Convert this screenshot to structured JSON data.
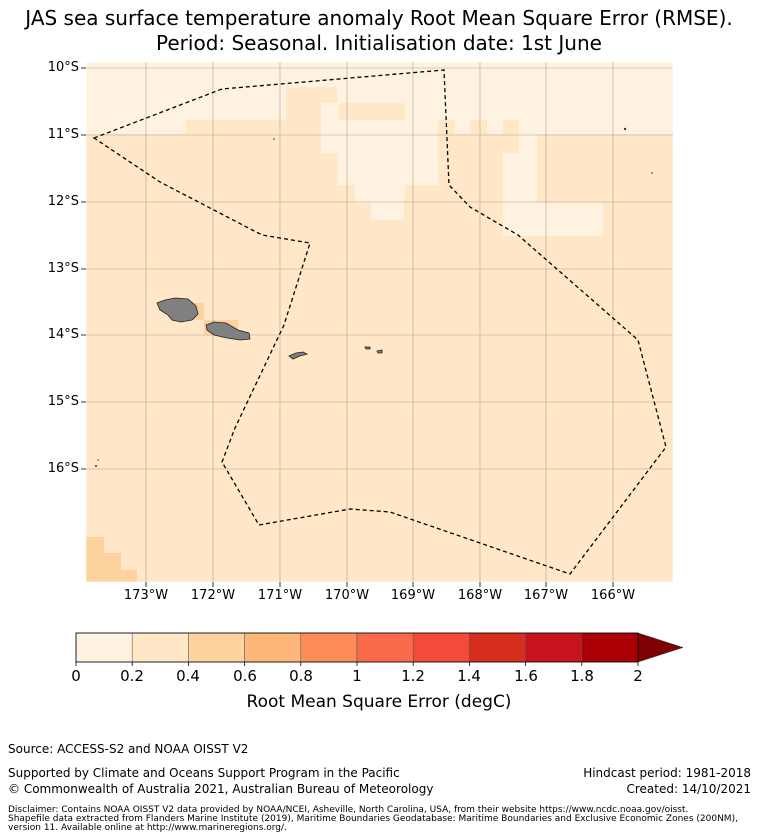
{
  "title_line1": "JAS sea surface temperature anomaly Root Mean Square Error (RMSE).",
  "title_line2": "Period: Seasonal. Initialisation date: 1st June",
  "map": {
    "lat_labels": [
      "10°S",
      "11°S",
      "12°S",
      "13°S",
      "14°S",
      "15°S",
      "16°S"
    ],
    "lon_labels": [
      "173°W",
      "172°W",
      "171°W",
      "170°W",
      "169°W",
      "168°W",
      "167°W",
      "166°W"
    ],
    "colors": {
      "bin_0_0.2": "#fff2e0",
      "bin_0.2_0.4": "#ffe7c7",
      "bin_0.4_0.6": "#fdd49e",
      "land": "#808080",
      "boundary": "#000000"
    },
    "bins": {
      "lowest_0_0.2": "northern cells and a band near 11°S–12.5°S, 169°W–167°W",
      "most_area_0.2_0.4": "default",
      "0.4_0.6": "small patches near Samoa and the south-west corner"
    }
  },
  "colorbar": {
    "ticks": [
      "0",
      "0.2",
      "0.4",
      "0.6",
      "0.8",
      "1",
      "1.2",
      "1.4",
      "1.6",
      "1.8",
      "2"
    ],
    "colors": [
      "#fff2e0",
      "#ffe7c7",
      "#fdd49e",
      "#fdb77a",
      "#fc8d59",
      "#fb6a4a",
      "#f44a3a",
      "#d62f1f",
      "#c8121e",
      "#aa0006",
      "#7f0000"
    ],
    "label": "Root Mean Square Error (degC)"
  },
  "footer": {
    "source": "Source: ACCESS-S2 and NOAA OISST V2",
    "supported": "Supported by Climate and Oceans Support Program in the Pacific",
    "copyright": "© Commonwealth of Australia 2021, Australian Bureau of Meteorology",
    "hindcast": "Hindcast period: 1981-2018",
    "created": "Created: 14/10/2021",
    "disclaimer1": "Disclaimer: Contains NOAA OISST V2 data provided by NOAA/NCEI, Asheville, North Carolina, USA, from their website https://www.ncdc.noaa.gov/oisst.",
    "disclaimer2": "Shapefile data extracted from Flanders Marine Institute (2019), Maritime Boundaries Geodatabase: Maritime Boundaries and Exclusive Economic Zones (200NM),",
    "disclaimer3": "version 11. Available online at http://www.marineregions.org/."
  }
}
